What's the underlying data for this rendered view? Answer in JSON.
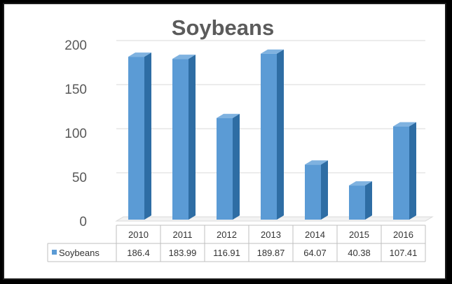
{
  "chart_data": {
    "type": "bar",
    "title": "Soybeans",
    "categories": [
      "2010",
      "2011",
      "2012",
      "2013",
      "2014",
      "2015",
      "2016"
    ],
    "series": [
      {
        "name": "Soybeans",
        "values": [
          186.4,
          183.99,
          116.91,
          189.87,
          64.07,
          40.38,
          107.41
        ],
        "value_labels": [
          "186.4",
          "183.99",
          "116.91",
          "189.87",
          "64.07",
          "40.38",
          "107.41"
        ],
        "color": "#5b9bd5"
      }
    ],
    "ylim": [
      0,
      200
    ],
    "yticks": [
      0,
      50,
      100,
      150,
      200
    ],
    "grid": true,
    "data_table": true,
    "bar_style": "3d"
  }
}
